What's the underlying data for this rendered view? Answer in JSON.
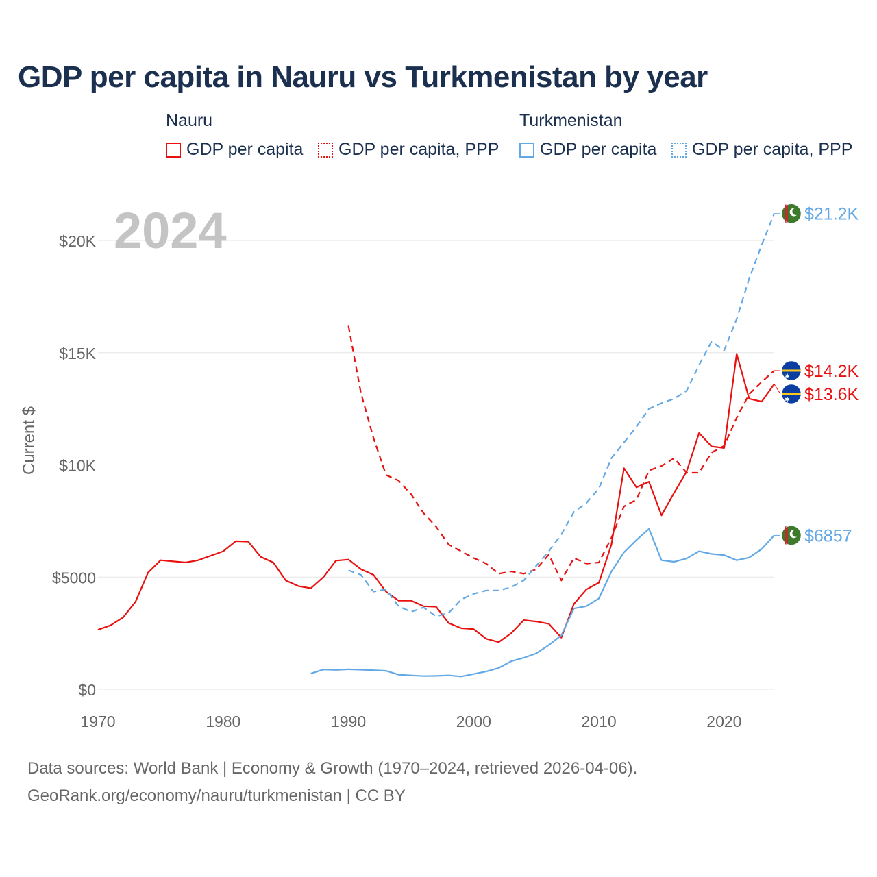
{
  "title": "GDP per capita in Nauru vs Turkmenistan by year",
  "legend": {
    "groups": [
      {
        "name": "Nauru",
        "items": [
          "GDP per capita",
          "GDP per capita, PPP"
        ]
      },
      {
        "name": "Turkmenistan",
        "items": [
          "GDP per capita",
          "GDP per capita, PPP"
        ]
      }
    ]
  },
  "year_label": "2024",
  "footer": {
    "line1": "Data sources: World Bank | Economy & Growth (1970–2024, retrieved 2026-04-06).",
    "line2": "GeoRank.org/economy/nauru/turkmenistan | CC BY"
  },
  "colors": {
    "nauru": "#e8110f",
    "turkmenistan": "#62a8e5",
    "title": "#1b2f4f",
    "grid": "#e6e6e6",
    "axis_text": "#666666"
  },
  "chart_data": {
    "type": "line",
    "title": "GDP per capita in Nauru vs Turkmenistan by year",
    "xlabel": "",
    "ylabel": "Current $",
    "xlim": [
      1970,
      2024
    ],
    "ylim": [
      0,
      22000
    ],
    "x_ticks": [
      1970,
      1980,
      1990,
      2000,
      2010,
      2020
    ],
    "x_tick_labels": [
      "1970",
      "1980",
      "1990",
      "2000",
      "2010",
      "2020"
    ],
    "y_ticks": [
      0,
      5000,
      10000,
      15000,
      20000
    ],
    "y_tick_labels": [
      "$0",
      "$5000",
      "$10K",
      "$15K",
      "$20K"
    ],
    "series": [
      {
        "name": "Nauru GDP per capita",
        "country": "nauru",
        "style": "solid",
        "end_label": "$13.6K",
        "x": [
          1970,
          1971,
          1972,
          1973,
          1974,
          1975,
          1976,
          1977,
          1978,
          1979,
          1980,
          1981,
          1982,
          1983,
          1984,
          1985,
          1986,
          1987,
          1988,
          1989,
          1990,
          1991,
          1992,
          1993,
          1994,
          1995,
          1996,
          1997,
          1998,
          1999,
          2000,
          2001,
          2002,
          2003,
          2004,
          2005,
          2006,
          2007,
          2008,
          2009,
          2010,
          2011,
          2012,
          2013,
          2014,
          2015,
          2016,
          2017,
          2018,
          2019,
          2020,
          2021,
          2022,
          2023,
          2024
        ],
        "values": [
          2650,
          2850,
          3200,
          3900,
          5200,
          5750,
          5700,
          5650,
          5750,
          5950,
          6150,
          6600,
          6580,
          5900,
          5650,
          4850,
          4600,
          4500,
          5000,
          5730,
          5780,
          5350,
          5100,
          4350,
          3950,
          3950,
          3700,
          3680,
          2950,
          2720,
          2680,
          2250,
          2100,
          2500,
          3080,
          3020,
          2920,
          2300,
          3800,
          4450,
          4750,
          6450,
          9850,
          9000,
          9250,
          7750,
          8750,
          9700,
          11420,
          10820,
          10750,
          14950,
          12950,
          12820,
          13600
        ]
      },
      {
        "name": "Nauru GDP per capita, PPP",
        "country": "nauru",
        "style": "dashed",
        "end_label": "$14.2K",
        "x": [
          1990,
          1991,
          1992,
          1993,
          1994,
          1995,
          1996,
          1997,
          1998,
          1999,
          2000,
          2001,
          2002,
          2003,
          2004,
          2005,
          2006,
          2007,
          2008,
          2009,
          2010,
          2011,
          2012,
          2013,
          2014,
          2015,
          2016,
          2017,
          2018,
          2019,
          2020,
          2021,
          2022,
          2023,
          2024
        ],
        "values": [
          16200,
          13200,
          11200,
          9550,
          9300,
          8700,
          7850,
          7250,
          6450,
          6150,
          5850,
          5600,
          5150,
          5250,
          5150,
          5350,
          6000,
          4850,
          5850,
          5600,
          5650,
          6750,
          8150,
          8450,
          9750,
          9950,
          10300,
          9650,
          9650,
          10550,
          10850,
          12100,
          13150,
          13700,
          14200
        ]
      },
      {
        "name": "Turkmenistan GDP per capita",
        "country": "turkmenistan",
        "style": "solid",
        "end_label": "$6857",
        "x": [
          1987,
          1988,
          1989,
          1990,
          1991,
          1992,
          1993,
          1994,
          1995,
          1996,
          1997,
          1998,
          1999,
          2000,
          2001,
          2002,
          2003,
          2004,
          2005,
          2006,
          2007,
          2008,
          2009,
          2010,
          2011,
          2012,
          2013,
          2014,
          2015,
          2016,
          2017,
          2018,
          2019,
          2020,
          2021,
          2022,
          2023,
          2024
        ],
        "values": [
          700,
          880,
          860,
          890,
          870,
          850,
          820,
          650,
          620,
          590,
          600,
          620,
          570,
          680,
          790,
          950,
          1250,
          1400,
          1600,
          1970,
          2400,
          3600,
          3700,
          4050,
          5250,
          6100,
          6650,
          7150,
          5750,
          5680,
          5830,
          6150,
          6030,
          5980,
          5750,
          5870,
          6250,
          6857
        ]
      },
      {
        "name": "Turkmenistan GDP per capita, PPP",
        "country": "turkmenistan",
        "style": "dashed",
        "end_label": "$21.2K",
        "x": [
          1990,
          1991,
          1992,
          1993,
          1994,
          1995,
          1996,
          1997,
          1998,
          1999,
          2000,
          2001,
          2002,
          2003,
          2004,
          2005,
          2006,
          2007,
          2008,
          2009,
          2010,
          2011,
          2012,
          2013,
          2014,
          2015,
          2016,
          2017,
          2018,
          2019,
          2020,
          2021,
          2022,
          2023,
          2024
        ],
        "values": [
          5300,
          5100,
          4350,
          4450,
          3700,
          3450,
          3650,
          3250,
          3400,
          4000,
          4250,
          4400,
          4400,
          4550,
          4850,
          5500,
          6150,
          6900,
          7900,
          8300,
          8950,
          10300,
          11000,
          11700,
          12500,
          12750,
          12950,
          13300,
          14450,
          15500,
          15100,
          16500,
          18300,
          19800,
          21200
        ]
      }
    ]
  }
}
